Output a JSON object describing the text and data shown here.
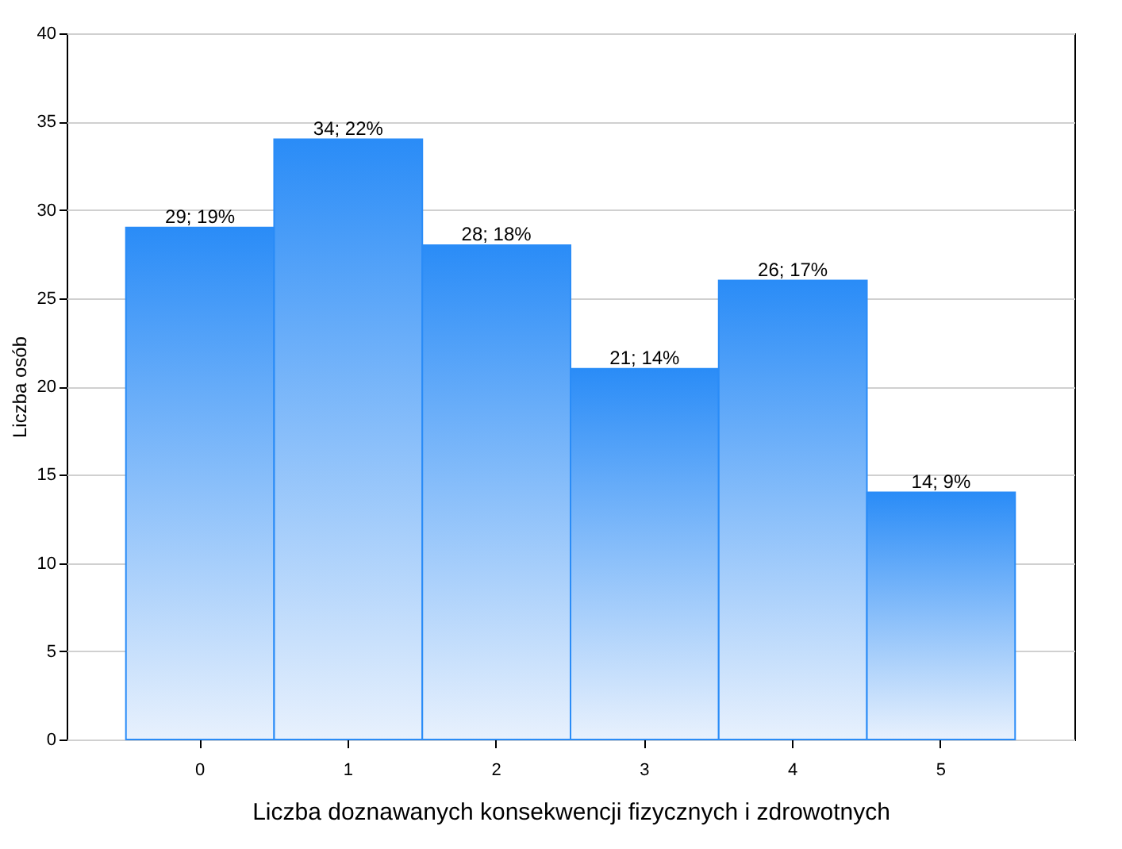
{
  "chart_data": {
    "type": "bar",
    "xlabel": "Liczba doznawanych konsekwencji fizycznych i zdrowotnych",
    "ylabel": "Liczba osób",
    "categories": [
      "0",
      "1",
      "2",
      "3",
      "4",
      "5"
    ],
    "values": [
      29,
      34,
      28,
      21,
      26,
      14
    ],
    "value_labels": [
      "29; 19%",
      "34; 22%",
      "28; 18%",
      "21; 14%",
      "26; 17%",
      "14; 9%"
    ],
    "color": "#2a8cf7",
    "ylim": [
      0,
      40
    ],
    "yticks": [
      0,
      5,
      10,
      15,
      20,
      25,
      30,
      35,
      40
    ],
    "grid": "y"
  }
}
